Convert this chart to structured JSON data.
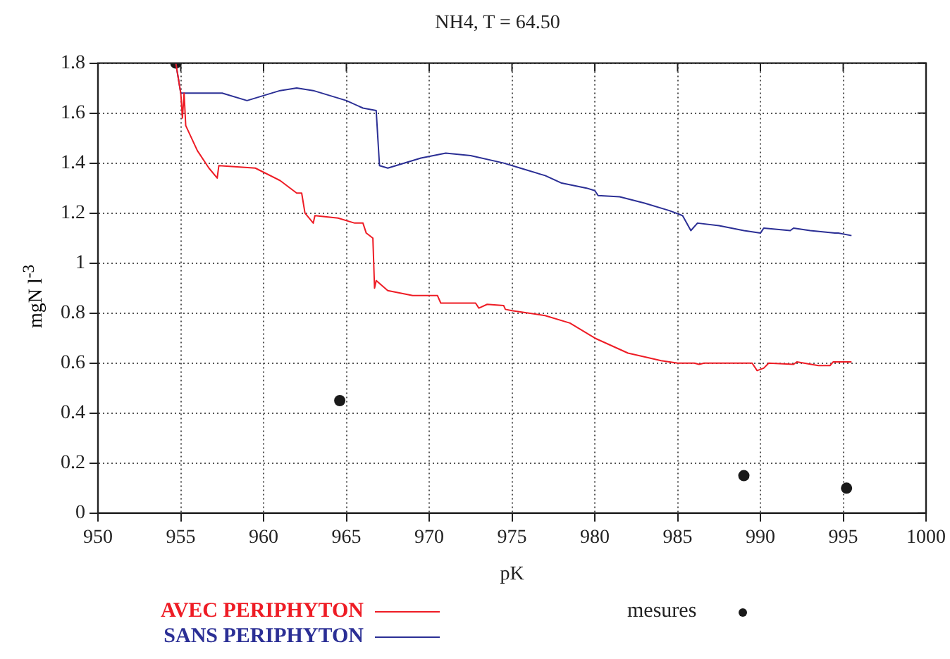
{
  "chart_data": {
    "type": "line",
    "title": "NH4, T = 64.50",
    "xlabel": "pK",
    "ylabel": "mgN l$^{-3}$",
    "xlim": [
      950,
      1000
    ],
    "xticks": [
      950,
      955,
      960,
      965,
      970,
      975,
      980,
      985,
      990,
      995,
      1000
    ],
    "ylim": [
      0,
      1.8
    ],
    "yticks": [
      0,
      0.2,
      0.4,
      0.6,
      0.8,
      1,
      1.2,
      1.4,
      1.6,
      1.8
    ],
    "grid": true,
    "legend": "bottom",
    "line_style": "solid",
    "series": [
      {
        "name": "AVEC PERIPHYTON",
        "marker": "none",
        "color": "#ee1c25",
        "x": [
          954.7,
          955,
          955.1,
          955.2,
          955.3,
          956,
          956.7,
          957.2,
          957.3,
          959.5,
          961,
          962,
          962.3,
          962.5,
          963,
          963.1,
          964.5,
          965.5,
          966,
          966.2,
          966.6,
          966.7,
          966.8,
          967.5,
          969,
          970.5,
          970.7,
          972.8,
          973,
          973.5,
          974.5,
          974.6,
          975,
          977,
          978.5,
          980,
          982,
          984,
          985,
          986,
          986.3,
          986.6,
          989.5,
          989.8,
          990.2,
          990.5,
          992,
          992.2,
          993.5,
          994.2,
          994.4,
          995.5
        ],
        "values": [
          1.8,
          1.68,
          1.58,
          1.68,
          1.55,
          1.45,
          1.38,
          1.34,
          1.39,
          1.38,
          1.33,
          1.28,
          1.28,
          1.2,
          1.16,
          1.19,
          1.18,
          1.16,
          1.16,
          1.12,
          1.1,
          0.9,
          0.93,
          0.89,
          0.87,
          0.87,
          0.84,
          0.84,
          0.82,
          0.835,
          0.83,
          0.815,
          0.81,
          0.79,
          0.76,
          0.7,
          0.64,
          0.61,
          0.6,
          0.6,
          0.595,
          0.6,
          0.6,
          0.57,
          0.58,
          0.6,
          0.595,
          0.605,
          0.59,
          0.59,
          0.605,
          0.605
        ]
      },
      {
        "name": "SANS PERIPHYTON",
        "marker": "none",
        "color": "#2b2f95",
        "x": [
          954.7,
          955,
          957.5,
          959,
          961,
          962,
          963,
          965,
          966,
          966.8,
          967,
          967.5,
          969.5,
          971,
          972.5,
          974.5,
          975.5,
          977,
          978,
          979.5,
          980,
          980.2,
          981.5,
          983,
          984.5,
          985.3,
          985.8,
          986.2,
          987.5,
          989,
          990,
          990.2,
          991.8,
          992,
          993,
          994.5,
          994.7,
          995.5
        ],
        "values": [
          1.8,
          1.68,
          1.68,
          1.65,
          1.69,
          1.7,
          1.69,
          1.65,
          1.62,
          1.61,
          1.39,
          1.38,
          1.42,
          1.44,
          1.43,
          1.4,
          1.38,
          1.35,
          1.32,
          1.3,
          1.29,
          1.27,
          1.265,
          1.24,
          1.21,
          1.19,
          1.13,
          1.16,
          1.15,
          1.13,
          1.12,
          1.14,
          1.13,
          1.14,
          1.13,
          1.12,
          1.12,
          1.11
        ]
      },
      {
        "name": "mesures",
        "type": "scatter",
        "marker": "circle",
        "color": "#1a1a1a",
        "x": [
          954.7,
          964.6,
          989,
          995.2
        ],
        "values": [
          1.8,
          0.45,
          0.15,
          0.1
        ]
      }
    ]
  }
}
